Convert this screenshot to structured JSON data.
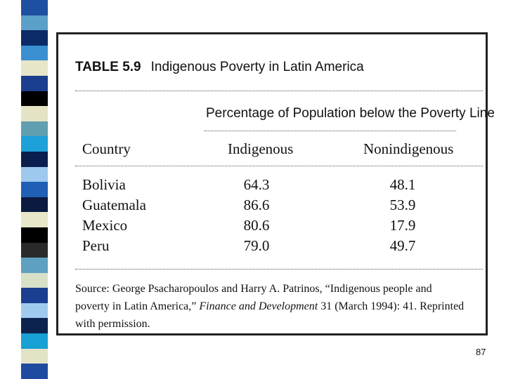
{
  "table": {
    "number": "TABLE 5.9",
    "title": "Indigenous Poverty in Latin America",
    "subheading": "Percentage of Population below the Poverty Line",
    "columns": [
      "Country",
      "Indigenous",
      "Nonindigenous"
    ],
    "rows": [
      {
        "country": "Bolivia",
        "indigenous": "64.3",
        "nonindigenous": "48.1"
      },
      {
        "country": "Guatemala",
        "indigenous": "86.6",
        "nonindigenous": "53.9"
      },
      {
        "country": "Mexico",
        "indigenous": "80.6",
        "nonindigenous": "17.9"
      },
      {
        "country": "Peru",
        "indigenous": "79.0",
        "nonindigenous": "49.7"
      }
    ],
    "source": {
      "prefix": "Source: George Psacharopoulos and Harry A. Patrinos, “Indigenous people and poverty in Latin America,” ",
      "journal": "Finance and Development",
      "suffix": " 31 (March 1994): 41. Reprinted with permission."
    }
  },
  "slide": {
    "page_number": "87",
    "stripe_colors": [
      "#1f4fa0",
      "#5aa0c8",
      "#0c2a66",
      "#3a8fd0",
      "#e6e6c8",
      "#1b3e8e",
      "#000000",
      "#e4e4c4",
      "#5f9fb0",
      "#1ea0d8",
      "#0b1f4f",
      "#9ec8ee",
      "#1f5fb5",
      "#0a1a40",
      "#e7e7c9",
      "#000000",
      "#2a2a2a",
      "#5fa0c0",
      "#d8e0c8",
      "#1a3f90",
      "#9fcbef",
      "#0c234f",
      "#17a0d4",
      "#e3e3c6",
      "#1e4ba0"
    ]
  }
}
